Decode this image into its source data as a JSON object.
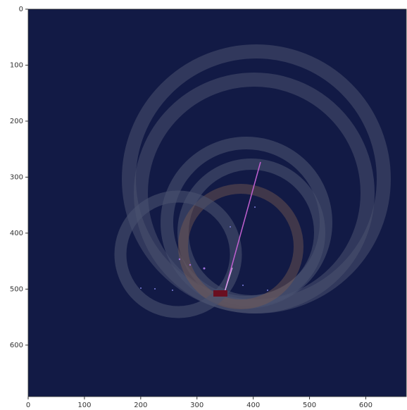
{
  "chart_data": {
    "type": "image",
    "xlim": [
      0,
      672
    ],
    "ylim": [
      692,
      0
    ],
    "xticks": [
      0,
      100,
      200,
      300,
      400,
      500,
      600
    ],
    "yticks": [
      0,
      100,
      200,
      300,
      400,
      500,
      600
    ]
  }
}
